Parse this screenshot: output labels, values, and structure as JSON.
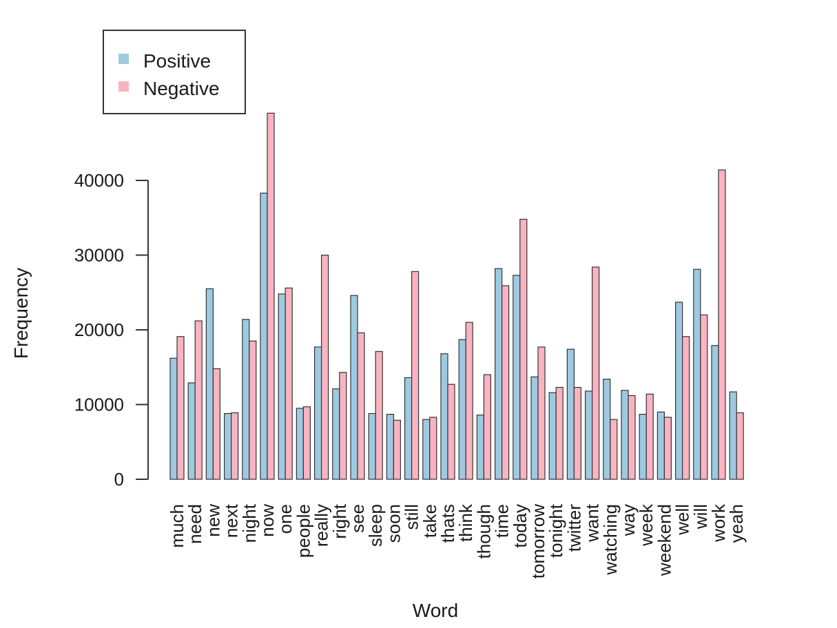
{
  "chart_data": {
    "type": "bar",
    "title": "",
    "xlabel": "Word",
    "ylabel": "Frequency",
    "ylim": [
      0,
      50000
    ],
    "yticks": [
      0,
      10000,
      20000,
      30000,
      40000
    ],
    "ytick_labels": [
      "0",
      "10000",
      "20000",
      "30000",
      "40000"
    ],
    "grid": false,
    "legend": "top-left",
    "categories": [
      "much",
      "need",
      "new",
      "next",
      "night",
      "now",
      "one",
      "people",
      "really",
      "right",
      "see",
      "sleep",
      "soon",
      "still",
      "take",
      "thats",
      "think",
      "though",
      "time",
      "today",
      "tomorrow",
      "tonight",
      "twitter",
      "want",
      "watching",
      "way",
      "week",
      "weekend",
      "well",
      "will",
      "work",
      "yeah"
    ],
    "series": [
      {
        "name": "Positive",
        "color": "#9ecae1",
        "values": [
          16200,
          12900,
          25500,
          8800,
          21400,
          38300,
          24800,
          9500,
          17700,
          12100,
          24600,
          8800,
          8700,
          13600,
          8000,
          16800,
          18700,
          8600,
          28200,
          27300,
          13700,
          11600,
          17400,
          11800,
          13400,
          11900,
          8700,
          9000,
          23700,
          28100,
          17900,
          11700
        ]
      },
      {
        "name": "Negative",
        "color": "#f9b3c1",
        "values": [
          19100,
          21200,
          14800,
          8900,
          18500,
          49000,
          25600,
          9700,
          30000,
          14300,
          19600,
          17100,
          7900,
          27800,
          8300,
          12700,
          21000,
          14000,
          25900,
          34800,
          17700,
          12300,
          12300,
          28400,
          8000,
          11200,
          11400,
          8300,
          19100,
          22000,
          41400,
          8900
        ]
      }
    ]
  }
}
